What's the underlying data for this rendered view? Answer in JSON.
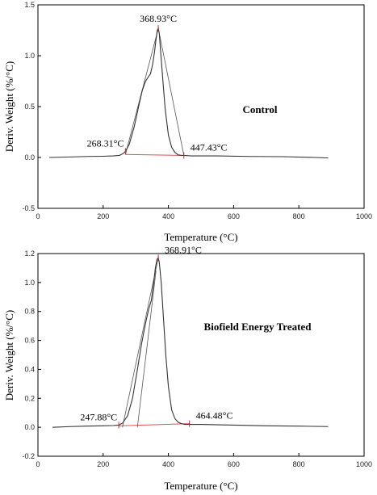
{
  "chart_data": [
    {
      "type": "line",
      "title": "Control",
      "xlabel": "Temperature (°C)",
      "ylabel": "Deriv. Weight (%/°C)",
      "xlim": [
        0,
        1000
      ],
      "ylim": [
        -0.5,
        1.5
      ],
      "xticks": [
        "0",
        "200",
        "400",
        "600",
        "800",
        "1000"
      ],
      "yticks": [
        "-0.5",
        "0.0",
        "0.5",
        "1.0",
        "1.5"
      ],
      "grid": false,
      "series": [
        {
          "x": [
            35,
            100,
            150,
            200,
            230,
            250,
            262,
            268.31,
            280,
            295,
            310,
            320,
            330,
            340,
            345,
            352,
            358,
            362,
            366,
            368.93,
            372,
            376,
            382,
            390,
            400,
            410,
            420,
            430,
            440,
            447.43,
            470,
            550,
            650,
            750,
            850,
            890
          ],
          "y": [
            0.0,
            0.005,
            0.01,
            0.012,
            0.015,
            0.02,
            0.04,
            0.06,
            0.13,
            0.3,
            0.52,
            0.66,
            0.75,
            0.8,
            0.82,
            0.92,
            1.05,
            1.16,
            1.25,
            1.27,
            1.22,
            1.05,
            0.8,
            0.48,
            0.22,
            0.1,
            0.05,
            0.025,
            0.02,
            0.02,
            0.015,
            0.015,
            0.01,
            0.008,
            0.0,
            -0.005
          ],
          "color": "#333333"
        }
      ],
      "baseline": {
        "x": [
          268.31,
          447.43
        ],
        "y": [
          0.03,
          0.02
        ],
        "color": "#e05050"
      },
      "tangents": [
        {
          "x": [
            268.31,
            370
          ],
          "y": [
            0.03,
            1.28
          ]
        },
        {
          "x": [
            447.43,
            368.93
          ],
          "y": [
            0.02,
            1.27
          ]
        }
      ],
      "annotations": [
        {
          "text": "368.93°C",
          "x": 368.93,
          "y": 1.27,
          "anchor": "above"
        },
        {
          "text": "268.31°C",
          "x": 268.31,
          "y": 0.06,
          "anchor": "left"
        },
        {
          "text": "447.43°C",
          "x": 447.43,
          "y": 0.02,
          "anchor": "right"
        }
      ],
      "panel_label": "Control"
    },
    {
      "type": "line",
      "title": "Biofield Energy Treated",
      "xlabel": "Temperature (°C)",
      "ylabel": "Deriv. Weight (%/°C)",
      "xlim": [
        0,
        1000
      ],
      "ylim": [
        -0.2,
        1.2
      ],
      "xticks": [
        "0",
        "200",
        "400",
        "600",
        "800",
        "1000"
      ],
      "yticks": [
        "-0.2",
        "0.0",
        "0.2",
        "0.4",
        "0.6",
        "0.8",
        "1.0",
        "1.2"
      ],
      "grid": false,
      "series": [
        {
          "x": [
            45,
            100,
            150,
            200,
            230,
            247.88,
            260,
            275,
            290,
            305,
            318,
            330,
            340,
            348,
            355,
            360,
            365,
            368.91,
            372,
            378,
            385,
            392,
            400,
            410,
            420,
            430,
            440,
            450,
            464.48,
            500,
            600,
            700,
            800,
            890
          ],
          "y": [
            0.0,
            0.005,
            0.008,
            0.01,
            0.012,
            0.015,
            0.03,
            0.08,
            0.2,
            0.4,
            0.58,
            0.72,
            0.82,
            0.88,
            1.0,
            1.1,
            1.16,
            1.17,
            1.14,
            1.0,
            0.75,
            0.5,
            0.28,
            0.12,
            0.06,
            0.035,
            0.025,
            0.02,
            0.02,
            0.02,
            0.015,
            0.01,
            0.008,
            0.005
          ],
          "color": "#333333"
        }
      ],
      "baseline": {
        "x": [
          247.88,
          464.48
        ],
        "y": [
          0.01,
          0.025
        ],
        "color": "#e05050"
      },
      "tangents": [
        {
          "x": [
            259,
            370
          ],
          "y": [
            0.0,
            1.18
          ]
        },
        {
          "x": [
            305,
            362
          ],
          "y": [
            0.0,
            1.08
          ]
        }
      ],
      "annotations": [
        {
          "text": "368.91°C",
          "x": 368.91,
          "y": 1.17,
          "anchor": "right"
        },
        {
          "text": "247.88°C",
          "x": 247.88,
          "y": 0.015,
          "anchor": "left"
        },
        {
          "text": "464.48°C",
          "x": 464.48,
          "y": 0.025,
          "anchor": "right"
        }
      ],
      "panel_label": "Biofield Energy Treated"
    }
  ]
}
